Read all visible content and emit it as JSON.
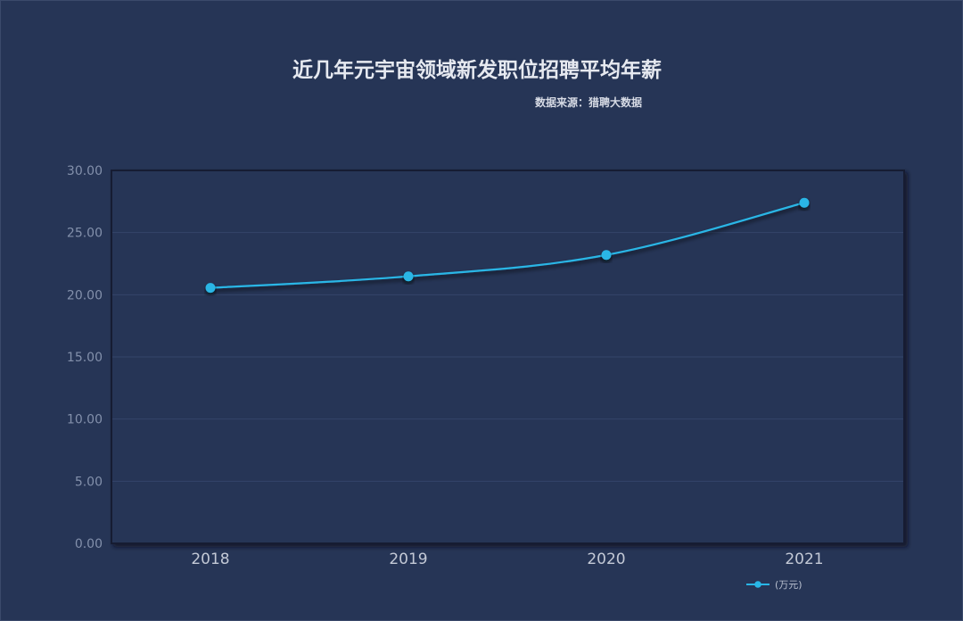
{
  "chart_data": {
    "type": "line",
    "title": "近几年元宇宙领域新发职位招聘平均年薪",
    "subtitle": "数据来源：猎聘大数据",
    "categories": [
      "2018",
      "2019",
      "2020",
      "2021"
    ],
    "series": [
      {
        "name": "(万元)",
        "values": [
          20.55,
          21.48,
          23.2,
          27.4
        ]
      }
    ],
    "xlabel": "",
    "ylabel": "",
    "ylim": [
      0,
      30
    ],
    "yticks": [
      "0.00",
      "5.00",
      "10.00",
      "15.00",
      "20.00",
      "25.00",
      "30.00"
    ],
    "grid": true,
    "legend": "bottom-right",
    "colors": {
      "background": "#263556",
      "line": "#29b6e6",
      "grid": "#34456a",
      "axis": "#141c30"
    }
  }
}
